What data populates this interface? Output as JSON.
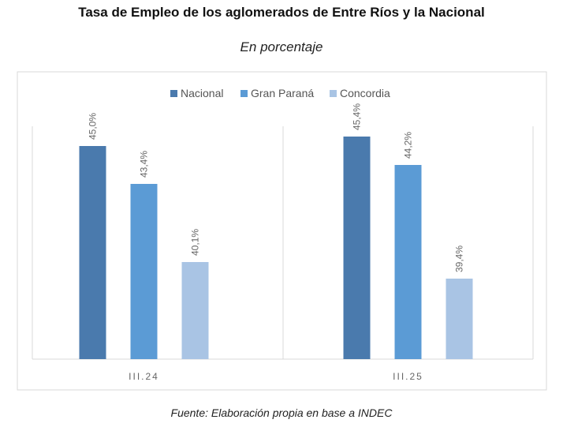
{
  "chart_data": {
    "type": "bar",
    "title": "Tasa de Empleo de los aglomerados de Entre Ríos y la Nacional",
    "subtitle": "En porcentaje",
    "source": "Fuente: Elaboración propia en base a INDEC",
    "categories": [
      "III.24",
      "III.25"
    ],
    "series": [
      {
        "name": "Nacional",
        "values": [
          45.0,
          45.4
        ],
        "labels": [
          "45,0%",
          "45,4%"
        ],
        "color": "#4a7aad"
      },
      {
        "name": "Gran Paraná",
        "values": [
          43.4,
          44.2
        ],
        "labels": [
          "43,4%",
          "44,2%"
        ],
        "color": "#5b9bd5"
      },
      {
        "name": "Concordia",
        "values": [
          40.1,
          39.4
        ],
        "labels": [
          "40,1%",
          "39,4%"
        ],
        "color": "#a9c4e4"
      }
    ],
    "ylim": [
      36,
      46.5
    ],
    "legend": "top-center",
    "grid": false
  }
}
